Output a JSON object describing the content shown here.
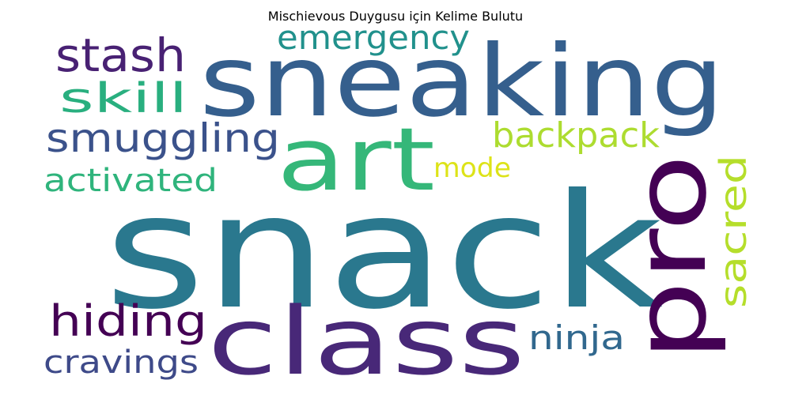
{
  "title": "Mischievous Duygusu için Kelime Bulutu",
  "words": [
    {
      "text": "snack",
      "color": "#2a788e"
    },
    {
      "text": "sneaking",
      "color": "#355f8d"
    },
    {
      "text": "class",
      "color": "#482878"
    },
    {
      "text": "art",
      "color": "#35b779"
    },
    {
      "text": "pro",
      "color": "#440154"
    },
    {
      "text": "stash",
      "color": "#482173"
    },
    {
      "text": "emergency",
      "color": "#21918c"
    },
    {
      "text": "skill",
      "color": "#29af7f"
    },
    {
      "text": "smuggling",
      "color": "#3b528b"
    },
    {
      "text": "backpack",
      "color": "#addc30"
    },
    {
      "text": "mode",
      "color": "#dde318"
    },
    {
      "text": "activated",
      "color": "#2fb47c"
    },
    {
      "text": "sacred",
      "color": "#b5de2b"
    },
    {
      "text": "hiding",
      "color": "#440154"
    },
    {
      "text": "ninja",
      "color": "#31688e"
    },
    {
      "text": "cravings",
      "color": "#3e4a89"
    }
  ]
}
